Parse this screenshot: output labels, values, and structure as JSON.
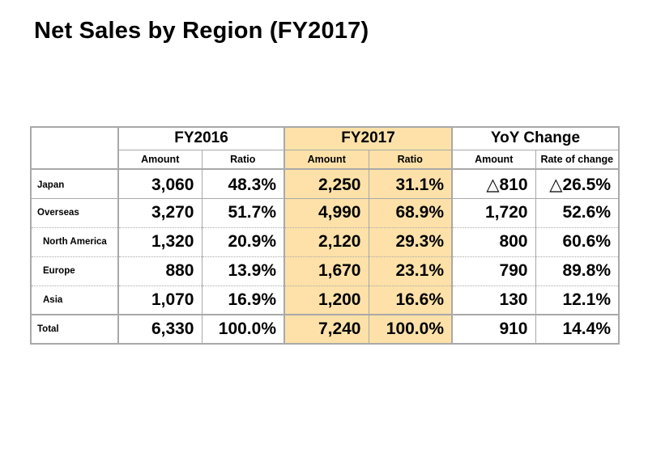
{
  "title": "Net Sales by Region (FY2017)",
  "chart_data": {
    "type": "table",
    "title": "Net Sales by Region (FY2017)",
    "groups": [
      {
        "label": "FY2016",
        "highlighted": false
      },
      {
        "label": "FY2017",
        "highlighted": true
      },
      {
        "label": "YoY Change",
        "highlighted": false
      }
    ],
    "subheaders": [
      "Amount",
      "Ratio",
      "Amount",
      "Ratio",
      "Amount",
      "Rate of change"
    ],
    "rows": [
      {
        "label": "Japan",
        "indent": false,
        "cells": [
          "3,060",
          "48.3%",
          "2,250",
          "31.1%",
          "△810",
          "△26.5%"
        ]
      },
      {
        "label": "Overseas",
        "indent": false,
        "cells": [
          "3,270",
          "51.7%",
          "4,990",
          "68.9%",
          "1,720",
          "52.6%"
        ]
      },
      {
        "label": "North America",
        "indent": true,
        "cells": [
          "1,320",
          "20.9%",
          "2,120",
          "29.3%",
          "800",
          "60.6%"
        ]
      },
      {
        "label": "Europe",
        "indent": true,
        "cells": [
          "880",
          "13.9%",
          "1,670",
          "23.1%",
          "790",
          "89.8%"
        ]
      },
      {
        "label": "Asia",
        "indent": true,
        "cells": [
          "1,070",
          "16.9%",
          "1,200",
          "16.6%",
          "130",
          "12.1%"
        ]
      },
      {
        "label": "Total",
        "indent": false,
        "cells": [
          "6,330",
          "100.0%",
          "7,240",
          "100.0%",
          "910",
          "14.4%"
        ]
      }
    ]
  },
  "colors": {
    "highlight": "#fde1a8",
    "border": "#a9a9a9",
    "text": "#000000"
  }
}
